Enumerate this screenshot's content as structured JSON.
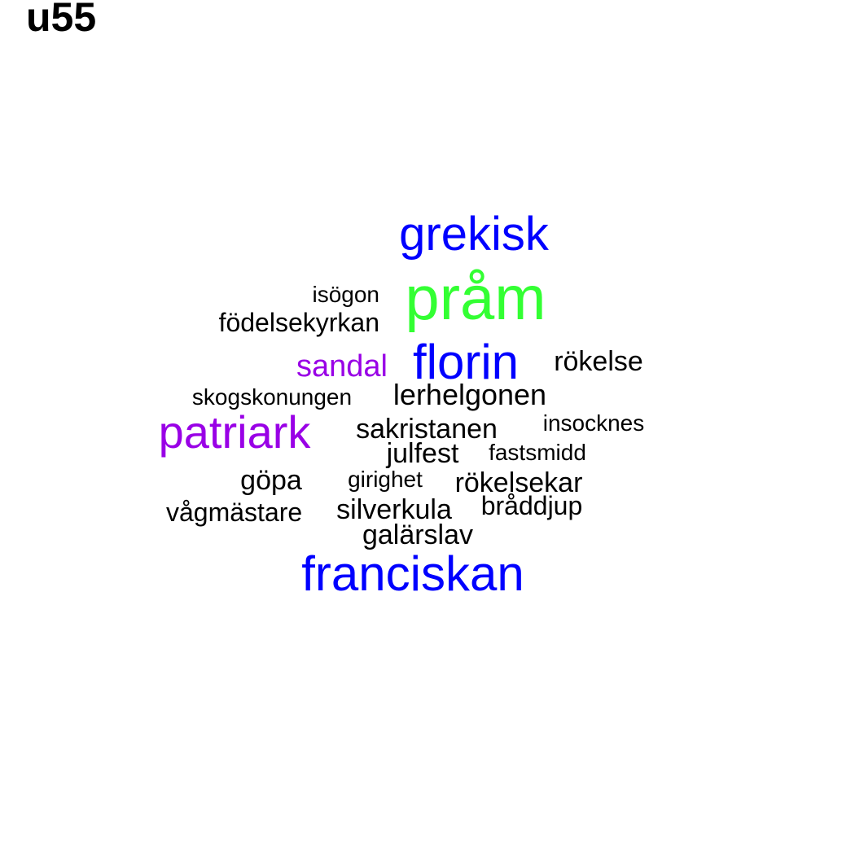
{
  "title": "u55",
  "colors": {
    "green": "#33ff33",
    "blue": "#0000ff",
    "purple": "#9900e6",
    "black": "#000000"
  },
  "words": [
    {
      "text": "pråm",
      "color": "green"
    },
    {
      "text": "grekisk",
      "color": "blue"
    },
    {
      "text": "florin",
      "color": "blue"
    },
    {
      "text": "franciskan",
      "color": "blue"
    },
    {
      "text": "patriark",
      "color": "purple"
    },
    {
      "text": "sandal",
      "color": "purple"
    },
    {
      "text": "isögon",
      "color": "black"
    },
    {
      "text": "födelsekyrkan",
      "color": "black"
    },
    {
      "text": "rökelse",
      "color": "black"
    },
    {
      "text": "skogskonungen",
      "color": "black"
    },
    {
      "text": "lerhelgonen",
      "color": "black"
    },
    {
      "text": "sakristanen",
      "color": "black"
    },
    {
      "text": "insocknes",
      "color": "black"
    },
    {
      "text": "julfest",
      "color": "black"
    },
    {
      "text": "fastsmidd",
      "color": "black"
    },
    {
      "text": "göpa",
      "color": "black"
    },
    {
      "text": "girighet",
      "color": "black"
    },
    {
      "text": "rökelsekar",
      "color": "black"
    },
    {
      "text": "vågmästare",
      "color": "black"
    },
    {
      "text": "silverkula",
      "color": "black"
    },
    {
      "text": "bråddjup",
      "color": "black"
    },
    {
      "text": "galärslav",
      "color": "black"
    }
  ]
}
